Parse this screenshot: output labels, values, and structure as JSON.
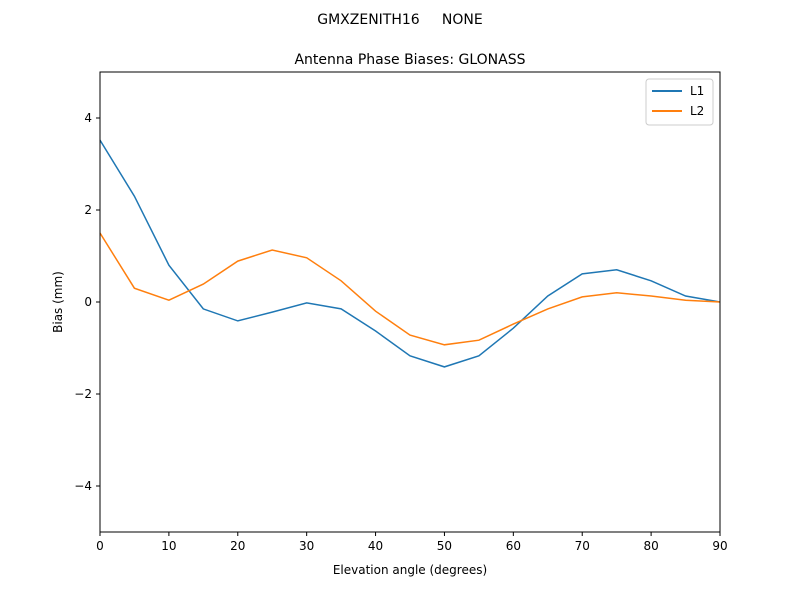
{
  "chart_data": {
    "type": "line",
    "suptitle": "GMXZENITH16     NONE",
    "title": "Antenna Phase Biases: GLONASS",
    "xlabel": "Elevation angle (degrees)",
    "ylabel": "Bias (mm)",
    "xlim": [
      0,
      90
    ],
    "ylim": [
      -5,
      5
    ],
    "xticks": [
      0,
      10,
      20,
      30,
      40,
      50,
      60,
      70,
      80,
      90
    ],
    "xtick_labels": [
      "0",
      "10",
      "20",
      "30",
      "40",
      "50",
      "60",
      "70",
      "80",
      "90"
    ],
    "yticks": [
      -4,
      -2,
      0,
      2,
      4
    ],
    "ytick_labels": [
      "−4",
      "−2",
      "0",
      "2",
      "4"
    ],
    "grid": false,
    "legend_position": "top-right",
    "x": [
      0,
      5,
      10,
      15,
      20,
      25,
      30,
      35,
      40,
      45,
      50,
      55,
      60,
      65,
      70,
      75,
      80,
      85,
      90
    ],
    "series": [
      {
        "name": "L1",
        "color": "#1f77b4",
        "values": [
          3.52,
          2.3,
          0.8,
          -0.15,
          -0.41,
          -0.22,
          -0.02,
          -0.15,
          -0.63,
          -1.17,
          -1.41,
          -1.17,
          -0.57,
          0.13,
          0.61,
          0.7,
          0.46,
          0.13,
          0.0
        ]
      },
      {
        "name": "L2",
        "color": "#ff7f0e",
        "values": [
          1.5,
          0.3,
          0.04,
          0.39,
          0.89,
          1.13,
          0.96,
          0.46,
          -0.2,
          -0.72,
          -0.93,
          -0.83,
          -0.48,
          -0.15,
          0.11,
          0.2,
          0.13,
          0.04,
          0.0
        ]
      }
    ]
  }
}
